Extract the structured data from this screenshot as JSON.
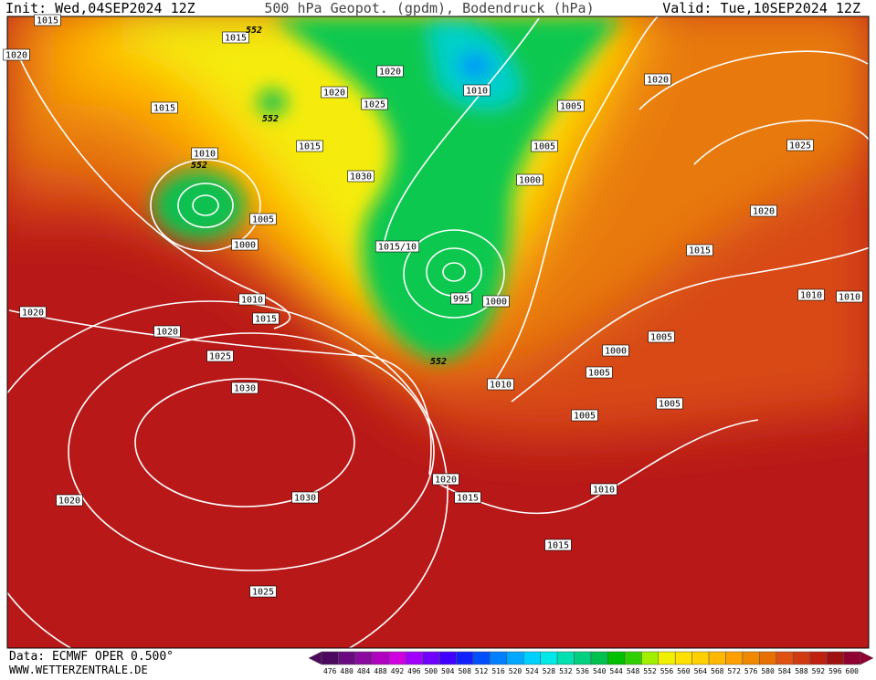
{
  "header": {
    "init": "Init: Wed,04SEP2024 12Z",
    "title": "500 hPa Geopot. (gpdm), Bodendruck (hPa)",
    "valid": "Valid: Tue,10SEP2024 12Z"
  },
  "isobar_labels": [
    "1015",
    "1020",
    "1015",
    "552",
    "552",
    "1015",
    "1010",
    "552",
    "1005",
    "1000",
    "1010",
    "1015",
    "1020",
    "1020",
    "1025",
    "1030",
    "1030",
    "1020",
    "1025",
    "1020",
    "1020",
    "1025",
    "1015",
    "1030",
    "1015/10",
    "1010",
    "1005",
    "1005",
    "1000",
    "995",
    "1000",
    "552",
    "1010",
    "1020",
    "1025",
    "1020",
    "1015",
    "1010",
    "1010",
    "1000",
    "1005",
    "1005",
    "1005",
    "1005",
    "1020",
    "1015",
    "1010",
    "1015"
  ],
  "legend": {
    "levels": [
      476,
      480,
      484,
      488,
      492,
      496,
      500,
      504,
      508,
      512,
      516,
      520,
      524,
      528,
      532,
      536,
      540,
      544,
      548,
      552,
      556,
      560,
      564,
      568,
      572,
      576,
      580,
      584,
      588,
      592,
      596,
      600
    ],
    "colors": [
      "#4b0a5e",
      "#6a0a80",
      "#8a0aa0",
      "#b000c0",
      "#d000e0",
      "#a000ff",
      "#7000ff",
      "#4000ff",
      "#1020ff",
      "#0050ff",
      "#0080ff",
      "#00a8ff",
      "#00d0ff",
      "#00e8e8",
      "#00e0b0",
      "#00d080",
      "#00c050",
      "#00c000",
      "#30d000",
      "#a0f000",
      "#f0f000",
      "#ffe000",
      "#ffd000",
      "#ffb800",
      "#ffa000",
      "#f08800",
      "#e87000",
      "#e05010",
      "#d03a10",
      "#c02010",
      "#a01010",
      "#900030"
    ]
  },
  "footer": {
    "source": "Data: ECMWF OPER 0.500°",
    "site": "WWW.WETTERZENTRALE.DE"
  }
}
